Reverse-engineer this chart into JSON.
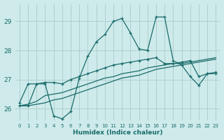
{
  "bg_color": "#ceeaea",
  "grid_color": "#aed0d0",
  "line_color": "#1a6b6b",
  "xlabel": "Humidex (Indice chaleur)",
  "xlim": [
    -0.5,
    23.5
  ],
  "ylim": [
    25.6,
    29.6
  ],
  "yticks": [
    26,
    27,
    28,
    29
  ],
  "xticks": [
    0,
    1,
    2,
    3,
    4,
    5,
    6,
    7,
    8,
    9,
    10,
    11,
    12,
    13,
    14,
    15,
    16,
    17,
    18,
    19,
    20,
    21,
    22,
    23
  ],
  "line1_x": [
    0,
    1,
    2,
    3,
    4,
    5,
    6,
    7,
    8,
    9,
    10,
    11,
    12,
    13,
    14,
    15,
    16,
    17,
    18,
    19,
    20,
    21,
    22,
    23
  ],
  "line1_y": [
    26.1,
    26.1,
    26.85,
    26.85,
    25.75,
    25.65,
    25.9,
    27.05,
    27.8,
    28.3,
    28.55,
    29.0,
    29.1,
    28.6,
    28.05,
    28.0,
    29.15,
    29.15,
    27.65,
    27.5,
    27.1,
    26.8,
    27.2,
    27.2
  ],
  "line2_x": [
    0,
    1,
    2,
    3,
    4,
    5,
    6,
    7,
    8,
    9,
    10,
    11,
    12,
    13,
    14,
    15,
    16,
    17,
    18,
    19,
    20,
    21,
    22,
    23
  ],
  "line2_y": [
    26.1,
    26.1,
    26.15,
    26.2,
    26.3,
    26.35,
    26.45,
    26.55,
    26.65,
    26.75,
    26.85,
    26.95,
    27.05,
    27.1,
    27.15,
    27.25,
    27.35,
    27.4,
    27.45,
    27.5,
    27.55,
    27.6,
    27.65,
    27.7
  ],
  "line3_x": [
    0,
    1,
    2,
    3,
    4,
    5,
    6,
    7,
    8,
    9,
    10,
    11,
    12,
    13,
    14,
    15,
    16,
    17,
    18,
    19,
    20,
    21,
    22,
    23
  ],
  "line3_y": [
    26.2,
    26.85,
    26.85,
    26.9,
    26.9,
    26.85,
    27.0,
    27.1,
    27.2,
    27.3,
    27.4,
    27.5,
    27.55,
    27.6,
    27.65,
    27.7,
    27.75,
    27.55,
    27.55,
    27.6,
    27.65,
    27.1,
    27.2,
    27.25
  ],
  "line4_x": [
    0,
    1,
    2,
    3,
    4,
    5,
    6,
    7,
    8,
    9,
    10,
    11,
    12,
    13,
    14,
    15,
    16,
    17,
    18,
    19,
    20,
    21,
    22,
    23
  ],
  "line4_y": [
    26.1,
    26.15,
    26.25,
    26.45,
    26.5,
    26.55,
    26.65,
    26.75,
    26.85,
    26.95,
    27.05,
    27.1,
    27.2,
    27.25,
    27.3,
    27.4,
    27.45,
    27.5,
    27.55,
    27.55,
    27.6,
    27.65,
    27.7,
    27.75
  ]
}
